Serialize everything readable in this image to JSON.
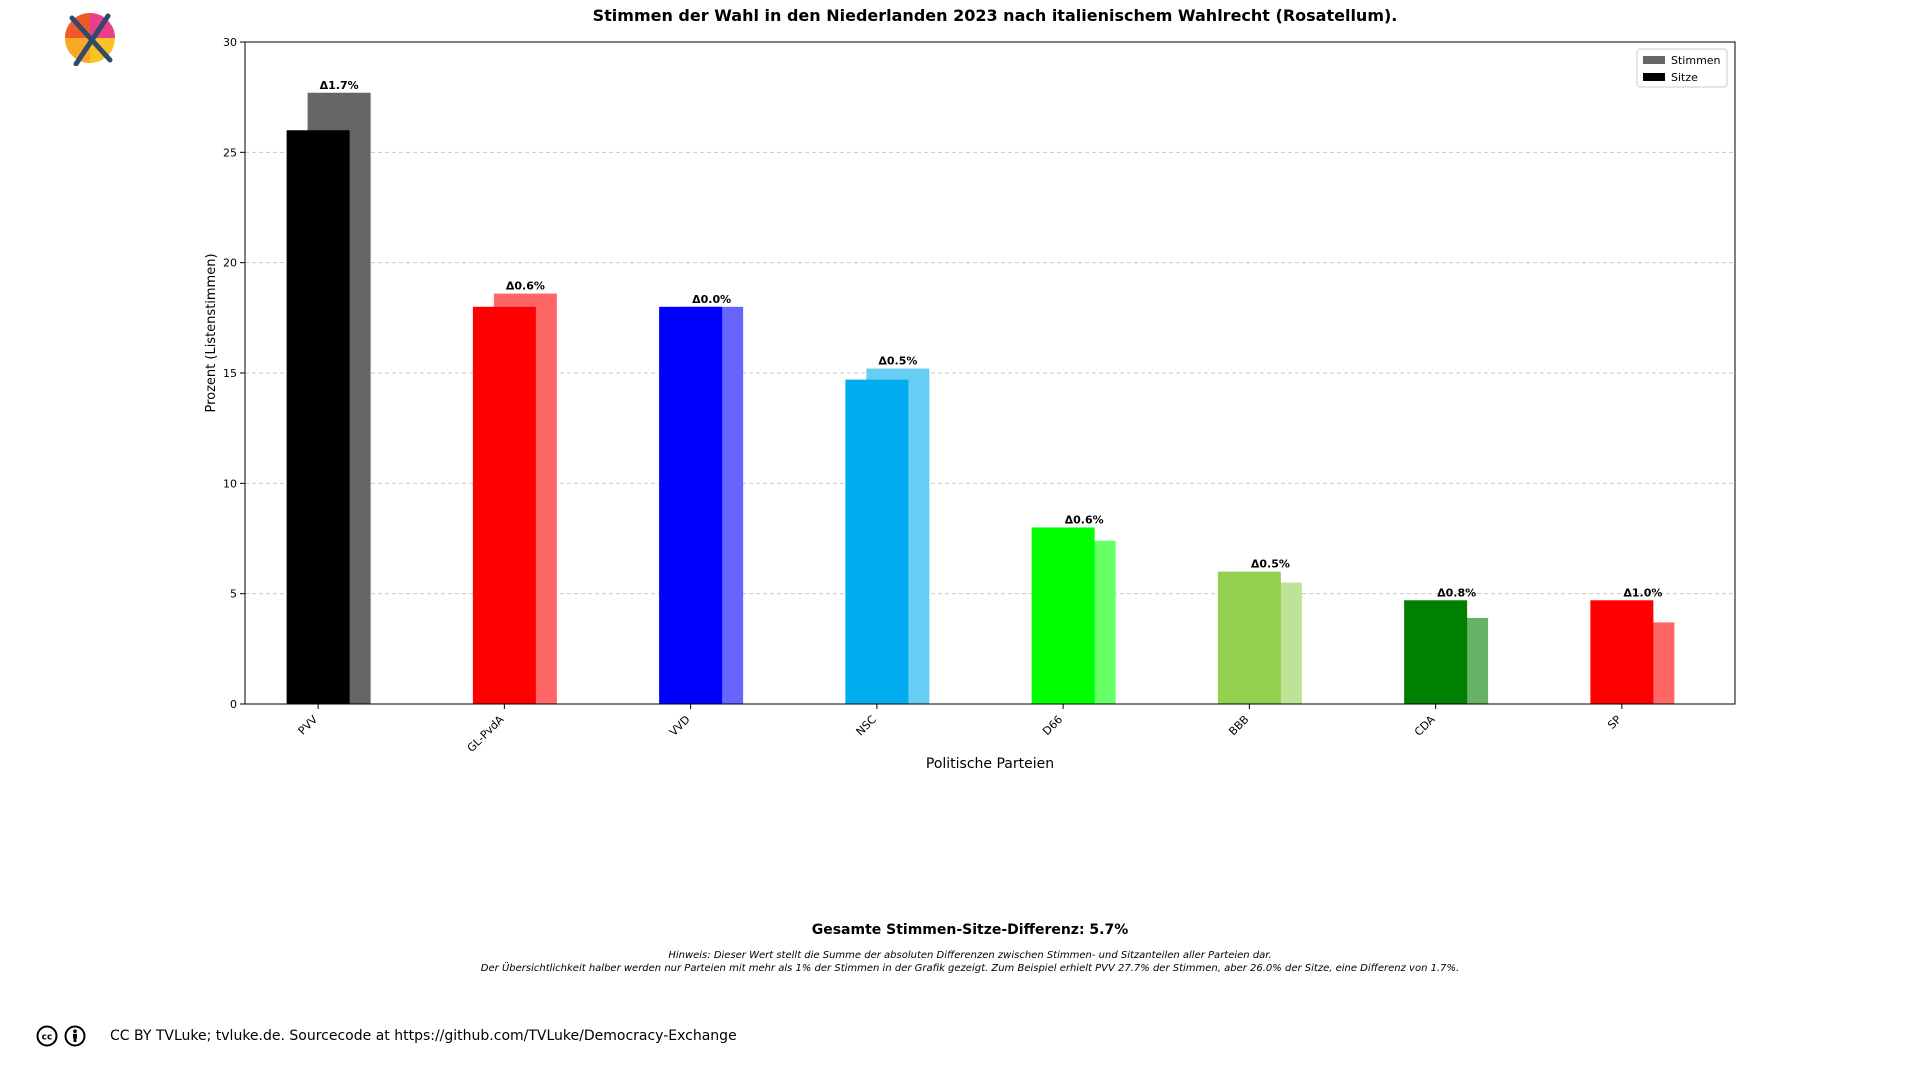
{
  "chart_data": {
    "type": "bar",
    "title": "Stimmen der Wahl in den Niederlanden 2023 nach italienischem Wahlrecht (Rosatellum).",
    "xlabel": "Politische Parteien",
    "ylabel": "Prozent (Listenstimmen)",
    "ylim": [
      0,
      30
    ],
    "yticks": [
      "0",
      "5",
      "10",
      "15",
      "20",
      "25",
      "30"
    ],
    "grid": true,
    "legend_position": "top-right",
    "categories": [
      "PVV",
      "GL-PvdA",
      "VVD",
      "NSC",
      "D66",
      "BBB",
      "CDA",
      "SP"
    ],
    "colors": [
      "#000000",
      "#ff0000",
      "#0000ff",
      "#00aeef",
      "#00ff00",
      "#92d050",
      "#008000",
      "#ff0000"
    ],
    "series": [
      {
        "name": "Stimmen",
        "values": [
          27.7,
          18.6,
          18.0,
          15.2,
          7.4,
          5.5,
          3.9,
          3.7
        ]
      },
      {
        "name": "Sitze",
        "values": [
          26.0,
          18.0,
          18.0,
          14.7,
          8.0,
          6.0,
          4.7,
          4.7
        ]
      }
    ],
    "annotations": [
      "Δ1.7%",
      "Δ0.6%",
      "Δ0.0%",
      "Δ0.5%",
      "Δ0.6%",
      "Δ0.5%",
      "Δ0.8%",
      "Δ1.0%"
    ],
    "legend_colors": {
      "Stimmen": "#666666",
      "Sitze": "#000000"
    }
  },
  "summary": {
    "total": "Gesamte Stimmen-Sitze-Differenz: 5.7%",
    "note_line1": "Hinweis: Dieser Wert stellt die Summe der absoluten Differenzen zwischen Stimmen- und Sitzanteilen aller Parteien dar.",
    "note_line2": "Der Übersichtlichkeit halber werden nur Parteien mit mehr als 1% der Stimmen in der Grafik gezeigt. Zum Beispiel erhielt PVV 27.7% der Stimmen, aber 26.0% der Sitze, eine Differenz von 1.7%."
  },
  "footer": {
    "license_text": "CC BY TVLuke; tvluke.de. Sourcecode at https://github.com/TVLuke/Democracy-Exchange",
    "icons": [
      "cc-icon",
      "by-icon"
    ]
  },
  "logo": {
    "icon": "crossed-ballot-logo-icon"
  }
}
